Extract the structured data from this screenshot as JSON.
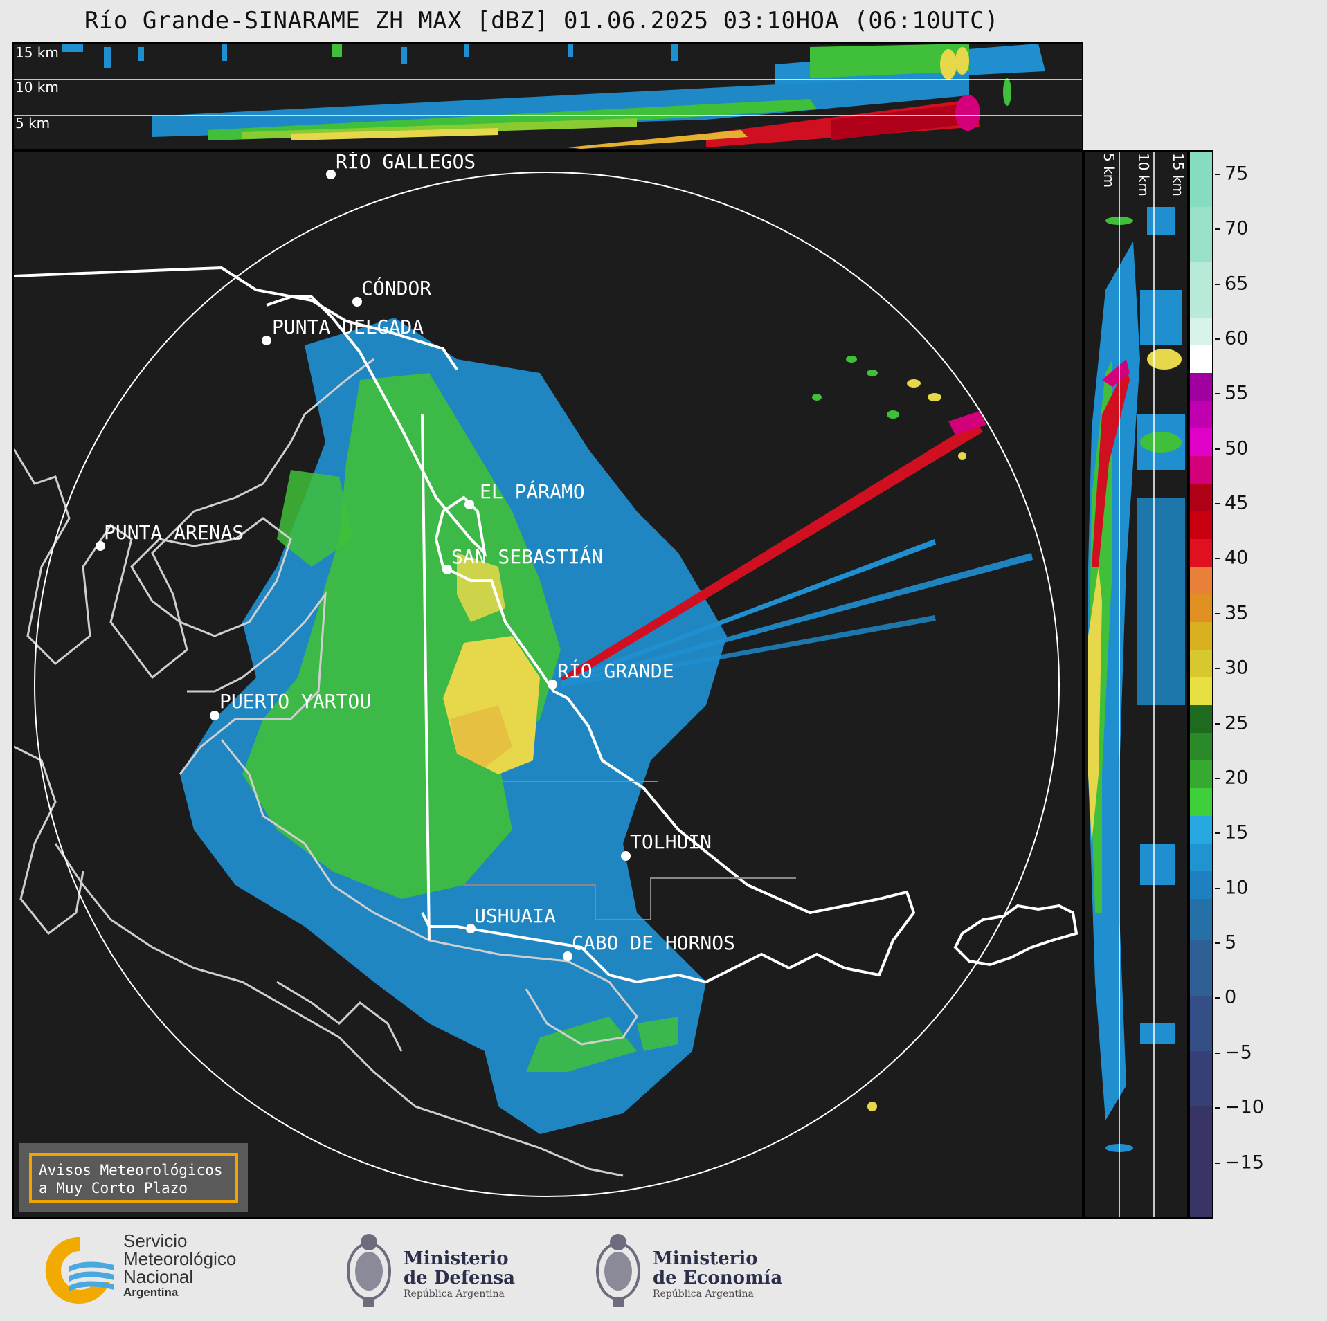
{
  "header": {
    "title": "Río Grande-SINARAME ZH MAX [dBZ] 01.06.2025 03:10HOA (06:10UTC)"
  },
  "top_panel": {
    "height_labels": [
      "15 km",
      "10 km",
      "5 km"
    ]
  },
  "right_panel": {
    "height_labels": [
      "5 km",
      "10 km",
      "15 km"
    ]
  },
  "map": {
    "cities": [
      {
        "name": "RÍO GALLEGOS"
      },
      {
        "name": "CÓNDOR"
      },
      {
        "name": "PUNTA DELGADA"
      },
      {
        "name": "EL PÁRAMO"
      },
      {
        "name": "PUNTA ARENAS"
      },
      {
        "name": "SAN SEBASTIÁN"
      },
      {
        "name": "RÍO GRANDE"
      },
      {
        "name": "PUERTO YARTOU"
      },
      {
        "name": "TOLHUIN"
      },
      {
        "name": "USHUAIA"
      },
      {
        "name": "CABO DE HORNOS"
      }
    ]
  },
  "colorbar": {
    "unit": "dBZ",
    "ticks": [
      "75",
      "70",
      "65",
      "60",
      "55",
      "50",
      "45",
      "40",
      "35",
      "30",
      "25",
      "20",
      "15",
      "10",
      "5",
      "0",
      "−5",
      "−10",
      "−15"
    ],
    "range": [
      -20,
      77
    ]
  },
  "badge": {
    "line1": "Avisos Meteorológicos",
    "line2": "a Muy Corto Plazo",
    "accent_color": "#f2a500"
  },
  "logos": {
    "smn": {
      "line1": "Servicio",
      "line2": "Meteorológico",
      "line3": "Nacional",
      "line4": "Argentina"
    },
    "defensa": {
      "line1": "Ministerio",
      "line2": "de Defensa",
      "line3": "República Argentina"
    },
    "economia": {
      "line1": "Ministerio",
      "line2": "de Economía",
      "line3": "República Argentina"
    }
  },
  "colors": {
    "background": "#1c1c1c",
    "blue_echo": "#1f8fd0",
    "green_echo": "#3fbf3a",
    "yellow_echo": "#e6d84a",
    "red_echo": "#d01020"
  }
}
